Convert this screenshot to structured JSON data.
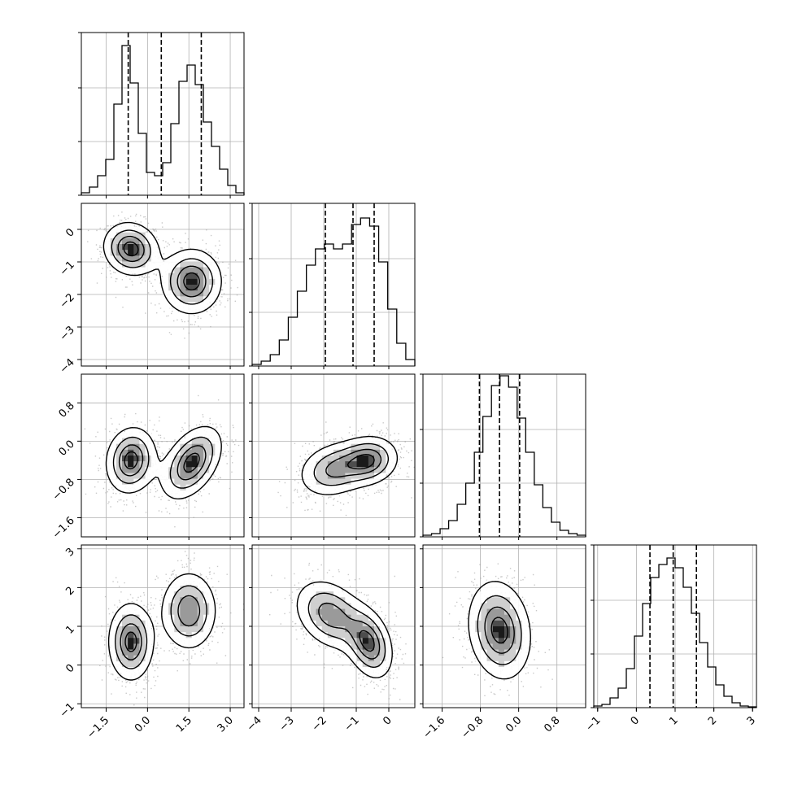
{
  "chart_data": {
    "type": "corner",
    "title": "",
    "variables": [
      {
        "index": 0,
        "range": [
          -2.4,
          3.5
        ],
        "ticks": [
          -1.5,
          0.0,
          1.5,
          3.0
        ],
        "tick_labels": [
          "−1.5",
          "0.0",
          "1.5",
          "3.0"
        ],
        "quantiles": [
          -0.7,
          0.5,
          1.95
        ],
        "hist": [
          0.015,
          0.05,
          0.12,
          0.22,
          0.56,
          0.92,
          0.69,
          0.38,
          0.14,
          0.12,
          0.2,
          0.44,
          0.7,
          0.8,
          0.68,
          0.45,
          0.3,
          0.16,
          0.06,
          0.015
        ]
      },
      {
        "index": 1,
        "range": [
          -4.2,
          0.8
        ],
        "ticks": [
          -4,
          -3,
          -2,
          -1,
          0
        ],
        "tick_labels": [
          "−4",
          "−3",
          "−2",
          "−1",
          "0"
        ],
        "quantiles": [
          -1.95,
          -1.1,
          -0.45
        ],
        "hist": [
          0.01,
          0.03,
          0.07,
          0.16,
          0.3,
          0.46,
          0.62,
          0.72,
          0.75,
          0.72,
          0.75,
          0.87,
          0.91,
          0.86,
          0.64,
          0.35,
          0.14,
          0.04
        ]
      },
      {
        "index": 2,
        "range": [
          -2.0,
          1.4
        ],
        "ticks": [
          -1.6,
          -0.8,
          0.0,
          0.8
        ],
        "tick_labels": [
          "−1.6",
          "−0.8",
          "0.0",
          "0.8"
        ],
        "quantiles": [
          -0.82,
          -0.4,
          0.02
        ],
        "hist": [
          0.01,
          0.02,
          0.05,
          0.1,
          0.2,
          0.33,
          0.52,
          0.74,
          0.93,
          0.99,
          0.92,
          0.73,
          0.52,
          0.32,
          0.18,
          0.09,
          0.04,
          0.02,
          0.01
        ]
      },
      {
        "index": 3,
        "range": [
          -1.1,
          3.1
        ],
        "ticks": [
          -1,
          0,
          1,
          2,
          3
        ],
        "tick_labels": [
          "−1",
          "0",
          "1",
          "2",
          "3"
        ],
        "quantiles": [
          0.35,
          0.95,
          1.55
        ],
        "hist": [
          0.01,
          0.02,
          0.06,
          0.12,
          0.24,
          0.44,
          0.64,
          0.8,
          0.88,
          0.92,
          0.86,
          0.74,
          0.58,
          0.4,
          0.25,
          0.14,
          0.07,
          0.03,
          0.01,
          0.005
        ]
      }
    ],
    "pairs": [
      {
        "x": 0,
        "y": 1,
        "modes": [
          {
            "center": [
              -0.6,
              -0.6
            ],
            "sd": [
              0.55,
              0.45
            ],
            "rho": -0.1,
            "weight": 1.0
          },
          {
            "center": [
              1.6,
              -1.6
            ],
            "sd": [
              0.6,
              0.55
            ],
            "rho": 0.0,
            "weight": 1.0
          }
        ]
      },
      {
        "x": 0,
        "y": 2,
        "modes": [
          {
            "center": [
              -0.6,
              -0.4
            ],
            "sd": [
              0.5,
              0.38
            ],
            "rho": 0.1,
            "weight": 1.0
          },
          {
            "center": [
              1.6,
              -0.45
            ],
            "sd": [
              0.6,
              0.42
            ],
            "rho": 0.45,
            "weight": 1.0
          }
        ]
      },
      {
        "x": 1,
        "y": 2,
        "modes": [
          {
            "center": [
              -1.7,
              -0.6
            ],
            "sd": [
              0.6,
              0.32
            ],
            "rho": 0.2,
            "weight": 0.85
          },
          {
            "center": [
              -0.6,
              -0.4
            ],
            "sd": [
              0.5,
              0.28
            ],
            "rho": 0.1,
            "weight": 1.0
          }
        ]
      },
      {
        "x": 0,
        "y": 3,
        "modes": [
          {
            "center": [
              -0.6,
              0.6
            ],
            "sd": [
              0.45,
              0.55
            ],
            "rho": 0.0,
            "weight": 1.0
          },
          {
            "center": [
              1.5,
              1.4
            ],
            "sd": [
              0.55,
              0.55
            ],
            "rho": 0.0,
            "weight": 0.9
          }
        ]
      },
      {
        "x": 1,
        "y": 3,
        "modes": [
          {
            "center": [
              -1.8,
              1.3
            ],
            "sd": [
              0.6,
              0.5
            ],
            "rho": -0.3,
            "weight": 0.9
          },
          {
            "center": [
              -0.6,
              0.55
            ],
            "sd": [
              0.4,
              0.5
            ],
            "rho": -0.3,
            "weight": 1.0
          }
        ]
      },
      {
        "x": 2,
        "y": 3,
        "modes": [
          {
            "center": [
              -0.4,
              0.9
            ],
            "sd": [
              0.36,
              0.7
            ],
            "rho": -0.15,
            "weight": 1.0
          }
        ]
      }
    ],
    "contour_levels": [
      0.2,
      0.45,
      0.7,
      0.9
    ],
    "grid": true,
    "colors": {
      "line": "#000000",
      "grid": "#b0b0b0",
      "scatter": "#9a9a9a",
      "density_dark": "#1a1a1a"
    }
  }
}
